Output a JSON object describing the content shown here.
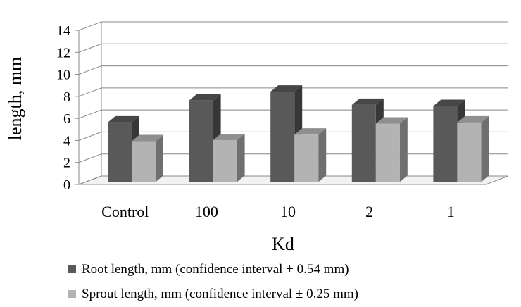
{
  "chart_data": {
    "type": "bar",
    "categories": [
      "Control",
      "100",
      "10",
      "2",
      "1"
    ],
    "series": [
      {
        "name": "Root length, mm (confidence interval + 0.54 mm)",
        "color": "#595959",
        "values": [
          5.4,
          7.4,
          8.2,
          7.0,
          6.9
        ]
      },
      {
        "name": "Sprout length, mm (confidence interval ± 0.25 mm)",
        "color": "#b3b3b3",
        "values": [
          3.7,
          3.8,
          4.3,
          5.3,
          5.4
        ]
      }
    ],
    "xlabel": "Kd",
    "ylabel": "length, mm",
    "ylim": [
      0,
      14
    ],
    "yticks": [
      "0",
      "2",
      "4",
      "6",
      "8",
      "10",
      "12",
      "14"
    ],
    "grid": true,
    "legend_position": "bottom",
    "three_d": true
  }
}
